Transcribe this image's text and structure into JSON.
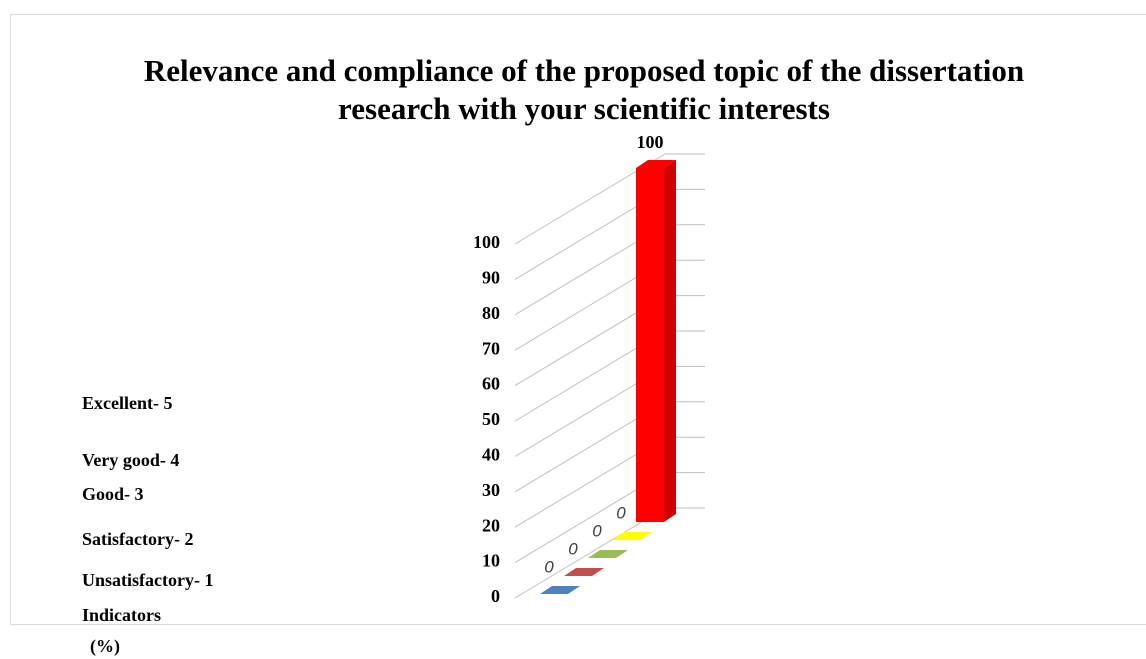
{
  "chart_data": {
    "type": "bar3d",
    "title": "Relevance and compliance of the proposed topic of the dissertation research with your scientific interests",
    "categories": [
      "Unsatisfactory- 1",
      "Satisfactory- 2",
      "Good- 3",
      "Very good- 4",
      "Excellent- 5"
    ],
    "values": [
      0,
      0,
      0,
      0,
      100
    ],
    "colors": [
      "#4f81bd",
      "#c0504d",
      "#9bbb59",
      "#ffff00",
      "#ff0000"
    ],
    "x_label": "Indicators",
    "y_label": "(%)",
    "ylim": [
      0,
      100
    ],
    "yticks": [
      0,
      10,
      20,
      30,
      40,
      50,
      60,
      70,
      80,
      90,
      100
    ],
    "grid": true
  }
}
